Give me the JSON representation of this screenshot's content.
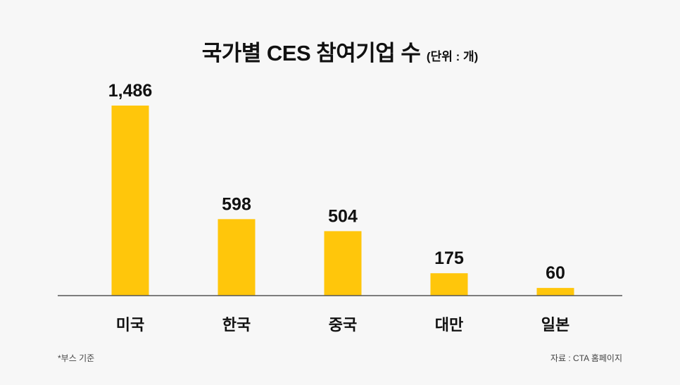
{
  "chart_data": {
    "type": "bar",
    "title": "국가별 CES 참여기업 수",
    "unit_label": "(단위 : 개)",
    "categories": [
      "미국",
      "한국",
      "중국",
      "대만",
      "일본"
    ],
    "values": [
      1486,
      598,
      504,
      175,
      60
    ],
    "value_labels": [
      "1,486",
      "598",
      "504",
      "175",
      "60"
    ],
    "bar_color": "#ffc60b",
    "axis_color": "#555555",
    "grid": false,
    "legend": "none"
  },
  "footnote": "*부스 기준",
  "source": "자료 : CTA 홈페이지"
}
